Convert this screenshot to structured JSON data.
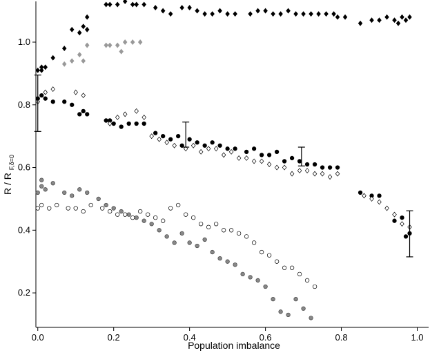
{
  "chart_data": {
    "type": "scatter",
    "xlabel": "Population imbalance",
    "ylabel": {
      "main": "R / R",
      "sub": "F,δ=0"
    },
    "xlim": [
      -0.005,
      1.03
    ],
    "ylim": [
      0.09,
      1.13
    ],
    "x_ticks": [
      "0.0",
      "0.2",
      "0.4",
      "0.6",
      "0.8",
      "1.0"
    ],
    "y_ticks": [
      "0.2",
      "0.4",
      "0.6",
      "0.8",
      "1.0"
    ],
    "grid": false,
    "legend": "none",
    "series": [
      {
        "marker": "filled-diamond",
        "color": "#000000",
        "points": [
          [
            0.0,
            0.91
          ],
          [
            0.01,
            0.92
          ],
          [
            0.02,
            0.92
          ],
          [
            0.01,
            0.91
          ],
          [
            0.04,
            0.95
          ],
          [
            0.07,
            0.98
          ],
          [
            0.09,
            1.04
          ],
          [
            0.12,
            1.05
          ],
          [
            0.13,
            1.04
          ],
          [
            0.11,
            1.03
          ],
          [
            0.13,
            1.08
          ],
          [
            0.18,
            1.12
          ],
          [
            0.19,
            1.12
          ],
          [
            0.21,
            1.12
          ],
          [
            0.23,
            1.13
          ],
          [
            0.26,
            1.12
          ],
          [
            0.28,
            1.12
          ],
          [
            0.25,
            1.12
          ],
          [
            0.31,
            1.11
          ],
          [
            0.33,
            1.1
          ],
          [
            0.35,
            1.09
          ],
          [
            0.38,
            1.11
          ],
          [
            0.4,
            1.11
          ],
          [
            0.42,
            1.1
          ],
          [
            0.44,
            1.09
          ],
          [
            0.46,
            1.09
          ],
          [
            0.48,
            1.1
          ],
          [
            0.5,
            1.09
          ],
          [
            0.52,
            1.09
          ],
          [
            0.56,
            1.09
          ],
          [
            0.58,
            1.1
          ],
          [
            0.6,
            1.1
          ],
          [
            0.62,
            1.09
          ],
          [
            0.64,
            1.09
          ],
          [
            0.66,
            1.1
          ],
          [
            0.68,
            1.09
          ],
          [
            0.7,
            1.09
          ],
          [
            0.72,
            1.09
          ],
          [
            0.74,
            1.09
          ],
          [
            0.76,
            1.09
          ],
          [
            0.78,
            1.09
          ],
          [
            0.79,
            1.08
          ],
          [
            0.81,
            1.08
          ],
          [
            0.85,
            1.06
          ],
          [
            0.88,
            1.07
          ],
          [
            0.9,
            1.07
          ],
          [
            0.92,
            1.08
          ],
          [
            0.94,
            1.07
          ],
          [
            0.96,
            1.08
          ],
          [
            0.98,
            1.08
          ],
          [
            0.97,
            1.07
          ],
          [
            0.95,
            1.06
          ]
        ]
      },
      {
        "marker": "gray-diamond",
        "color": "#999999",
        "points": [
          [
            0.07,
            0.93
          ],
          [
            0.09,
            0.94
          ],
          [
            0.11,
            0.96
          ],
          [
            0.12,
            0.94
          ],
          [
            0.13,
            0.99
          ],
          [
            0.18,
            0.99
          ],
          [
            0.19,
            0.99
          ],
          [
            0.21,
            0.99
          ],
          [
            0.22,
            0.97
          ],
          [
            0.23,
            1.0
          ],
          [
            0.25,
            1.0
          ],
          [
            0.27,
            1.0
          ]
        ]
      },
      {
        "marker": "filled-circle",
        "color": "#000000",
        "points": [
          [
            0.0,
            0.82
          ],
          [
            0.01,
            0.83
          ],
          [
            0.02,
            0.82
          ],
          [
            0.04,
            0.81
          ],
          [
            0.07,
            0.81
          ],
          [
            0.09,
            0.8
          ],
          [
            0.11,
            0.77
          ],
          [
            0.12,
            0.78
          ],
          [
            0.13,
            0.77
          ],
          [
            0.18,
            0.75
          ],
          [
            0.19,
            0.75
          ],
          [
            0.2,
            0.74
          ],
          [
            0.22,
            0.73
          ],
          [
            0.24,
            0.74
          ],
          [
            0.26,
            0.74
          ],
          [
            0.28,
            0.74
          ],
          [
            0.31,
            0.71
          ],
          [
            0.33,
            0.7
          ],
          [
            0.35,
            0.69
          ],
          [
            0.37,
            0.7
          ],
          [
            0.38,
            0.67
          ],
          [
            0.4,
            0.69
          ],
          [
            0.42,
            0.68
          ],
          [
            0.44,
            0.67
          ],
          [
            0.46,
            0.68
          ],
          [
            0.48,
            0.67
          ],
          [
            0.5,
            0.66
          ],
          [
            0.52,
            0.66
          ],
          [
            0.55,
            0.65
          ],
          [
            0.57,
            0.66
          ],
          [
            0.59,
            0.64
          ],
          [
            0.61,
            0.64
          ],
          [
            0.63,
            0.65
          ],
          [
            0.65,
            0.62
          ],
          [
            0.67,
            0.63
          ],
          [
            0.69,
            0.62
          ],
          [
            0.71,
            0.61
          ],
          [
            0.73,
            0.61
          ],
          [
            0.75,
            0.6
          ],
          [
            0.77,
            0.6
          ],
          [
            0.79,
            0.6
          ],
          [
            0.85,
            0.52
          ],
          [
            0.88,
            0.51
          ],
          [
            0.9,
            0.51
          ],
          [
            0.94,
            0.43
          ],
          [
            0.96,
            0.44
          ],
          [
            0.97,
            0.38
          ],
          [
            0.98,
            0.39
          ]
        ]
      },
      {
        "marker": "open-diamond",
        "color": "#000000",
        "points": [
          [
            0.0,
            0.81
          ],
          [
            0.02,
            0.84
          ],
          [
            0.04,
            0.85
          ],
          [
            0.1,
            0.84
          ],
          [
            0.12,
            0.83
          ],
          [
            0.19,
            0.74
          ],
          [
            0.21,
            0.76
          ],
          [
            0.23,
            0.77
          ],
          [
            0.26,
            0.78
          ],
          [
            0.28,
            0.76
          ],
          [
            0.3,
            0.7
          ],
          [
            0.32,
            0.69
          ],
          [
            0.34,
            0.68
          ],
          [
            0.36,
            0.67
          ],
          [
            0.39,
            0.66
          ],
          [
            0.41,
            0.67
          ],
          [
            0.43,
            0.65
          ],
          [
            0.45,
            0.66
          ],
          [
            0.47,
            0.66
          ],
          [
            0.49,
            0.64
          ],
          [
            0.51,
            0.65
          ],
          [
            0.53,
            0.63
          ],
          [
            0.55,
            0.63
          ],
          [
            0.57,
            0.62
          ],
          [
            0.59,
            0.62
          ],
          [
            0.61,
            0.61
          ],
          [
            0.63,
            0.6
          ],
          [
            0.65,
            0.6
          ],
          [
            0.67,
            0.58
          ],
          [
            0.69,
            0.59
          ],
          [
            0.71,
            0.59
          ],
          [
            0.73,
            0.58
          ],
          [
            0.75,
            0.58
          ],
          [
            0.77,
            0.57
          ],
          [
            0.79,
            0.58
          ],
          [
            0.86,
            0.51
          ],
          [
            0.88,
            0.5
          ],
          [
            0.9,
            0.49
          ],
          [
            0.92,
            0.47
          ],
          [
            0.94,
            0.45
          ],
          [
            0.96,
            0.42
          ],
          [
            0.98,
            0.41
          ]
        ]
      },
      {
        "marker": "gray-circle",
        "color": "#888888",
        "points": [
          [
            0.0,
            0.52
          ],
          [
            0.01,
            0.54
          ],
          [
            0.02,
            0.53
          ],
          [
            0.01,
            0.56
          ],
          [
            0.04,
            0.55
          ],
          [
            0.07,
            0.52
          ],
          [
            0.09,
            0.51
          ],
          [
            0.11,
            0.53
          ],
          [
            0.13,
            0.52
          ],
          [
            0.16,
            0.5
          ],
          [
            0.18,
            0.48
          ],
          [
            0.2,
            0.47
          ],
          [
            0.22,
            0.46
          ],
          [
            0.24,
            0.45
          ],
          [
            0.26,
            0.44
          ],
          [
            0.28,
            0.43
          ],
          [
            0.3,
            0.42
          ],
          [
            0.32,
            0.4
          ],
          [
            0.34,
            0.38
          ],
          [
            0.36,
            0.36
          ],
          [
            0.38,
            0.39
          ],
          [
            0.4,
            0.36
          ],
          [
            0.42,
            0.35
          ],
          [
            0.44,
            0.37
          ],
          [
            0.46,
            0.33
          ],
          [
            0.48,
            0.31
          ],
          [
            0.5,
            0.3
          ],
          [
            0.52,
            0.29
          ],
          [
            0.54,
            0.26
          ],
          [
            0.56,
            0.25
          ],
          [
            0.58,
            0.24
          ],
          [
            0.6,
            0.22
          ],
          [
            0.62,
            0.18
          ],
          [
            0.64,
            0.14
          ],
          [
            0.66,
            0.13
          ],
          [
            0.68,
            0.18
          ],
          [
            0.7,
            0.15
          ],
          [
            0.72,
            0.12
          ]
        ]
      },
      {
        "marker": "open-circle",
        "color": "#000000",
        "points": [
          [
            0.0,
            0.47
          ],
          [
            0.01,
            0.48
          ],
          [
            0.03,
            0.47
          ],
          [
            0.05,
            0.48
          ],
          [
            0.08,
            0.47
          ],
          [
            0.1,
            0.47
          ],
          [
            0.12,
            0.46
          ],
          [
            0.14,
            0.48
          ],
          [
            0.17,
            0.47
          ],
          [
            0.19,
            0.46
          ],
          [
            0.21,
            0.45
          ],
          [
            0.23,
            0.45
          ],
          [
            0.25,
            0.44
          ],
          [
            0.27,
            0.46
          ],
          [
            0.29,
            0.45
          ],
          [
            0.31,
            0.44
          ],
          [
            0.33,
            0.43
          ],
          [
            0.35,
            0.47
          ],
          [
            0.37,
            0.48
          ],
          [
            0.39,
            0.45
          ],
          [
            0.41,
            0.44
          ],
          [
            0.43,
            0.42
          ],
          [
            0.45,
            0.41
          ],
          [
            0.47,
            0.42
          ],
          [
            0.49,
            0.4
          ],
          [
            0.51,
            0.4
          ],
          [
            0.53,
            0.39
          ],
          [
            0.55,
            0.38
          ],
          [
            0.57,
            0.36
          ],
          [
            0.59,
            0.33
          ],
          [
            0.61,
            0.32
          ],
          [
            0.63,
            0.3
          ],
          [
            0.65,
            0.28
          ],
          [
            0.67,
            0.28
          ],
          [
            0.69,
            0.26
          ],
          [
            0.71,
            0.24
          ],
          [
            0.73,
            0.22
          ]
        ]
      }
    ],
    "error_bars": [
      {
        "x": 0.0,
        "low": 0.715,
        "high": 0.895
      },
      {
        "x": 0.39,
        "low": 0.665,
        "high": 0.745
      },
      {
        "x": 0.695,
        "low": 0.605,
        "high": 0.665
      },
      {
        "x": 0.98,
        "low": 0.315,
        "high": 0.462
      }
    ]
  }
}
